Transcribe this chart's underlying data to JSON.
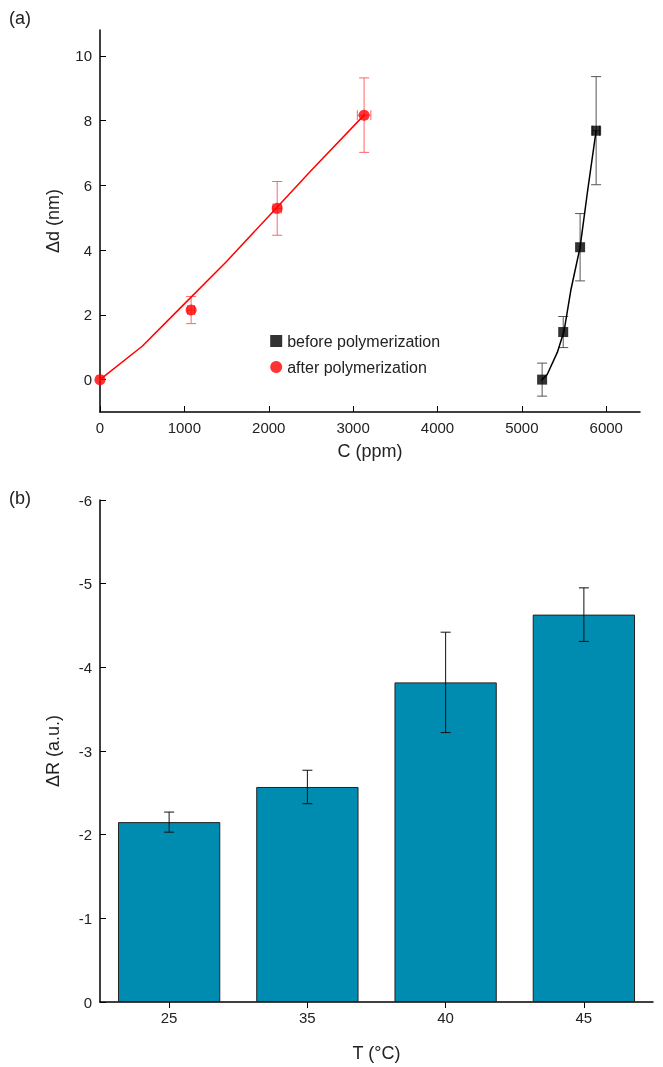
{
  "chart_data": [
    {
      "type": "scatter",
      "title": "(a)",
      "xlabel": "C (ppm)",
      "ylabel": "Δd (nm)",
      "xlim": [
        0,
        6400
      ],
      "xticks": [
        0,
        1000,
        2000,
        3000,
        4000,
        5000,
        6000
      ],
      "ylim": [
        -1,
        10.8
      ],
      "yticks": [
        0,
        2,
        4,
        6,
        8,
        10
      ],
      "grid": false,
      "legend": "bottom",
      "series": [
        {
          "name": "before polymerization",
          "color": "#000000",
          "marker": "square",
          "x": [
            5240,
            5490,
            5690,
            5880
          ],
          "values": [
            0,
            1.47,
            4.09,
            7.69
          ],
          "errors": [
            0.51,
            0.48,
            1.04,
            1.67
          ],
          "xerrors": [
            null,
            null,
            null,
            40
          ]
        },
        {
          "name": "after polymerization",
          "color": "#ff0000",
          "marker": "circle",
          "x": [
            0,
            1080,
            2100,
            3130
          ],
          "values": [
            0,
            2.15,
            5.29,
            8.17
          ],
          "errors": [
            null,
            0.42,
            0.83,
            1.15
          ],
          "xerrors": [
            null,
            40,
            50,
            80
          ]
        },
        {
          "type": "line",
          "color": "#000000",
          "marker": "none",
          "x": [
            5240,
            5300,
            5420,
            5500,
            5580,
            5690,
            5780,
            5880
          ],
          "values": [
            0,
            0.16,
            0.84,
            1.5,
            2.76,
            4.09,
            5.85,
            7.69
          ]
        },
        {
          "type": "line",
          "color": "#ff0000",
          "marker": "none",
          "x": [
            0,
            500,
            1000,
            1500,
            2000,
            2500,
            3130
          ],
          "values": [
            0,
            1.03,
            2.34,
            3.65,
            5.05,
            6.45,
            8.17
          ]
        }
      ]
    },
    {
      "type": "bar",
      "title": "(b)",
      "xlabel": "T (°C)",
      "ylabel": "ΔR (a.u.)",
      "categories": [
        "25",
        "35",
        "40",
        "45"
      ],
      "ylim": [
        0,
        -6
      ],
      "yticks": [
        0,
        -1,
        -2,
        -3,
        -4,
        -5,
        -6
      ],
      "grid": false,
      "legend": false,
      "series": [
        {
          "color": "#008bb0",
          "values": [
            -2.15,
            -2.57,
            -3.82,
            -4.63
          ],
          "errors": [
            0.12,
            0.2,
            0.6,
            0.32
          ]
        }
      ]
    }
  ]
}
